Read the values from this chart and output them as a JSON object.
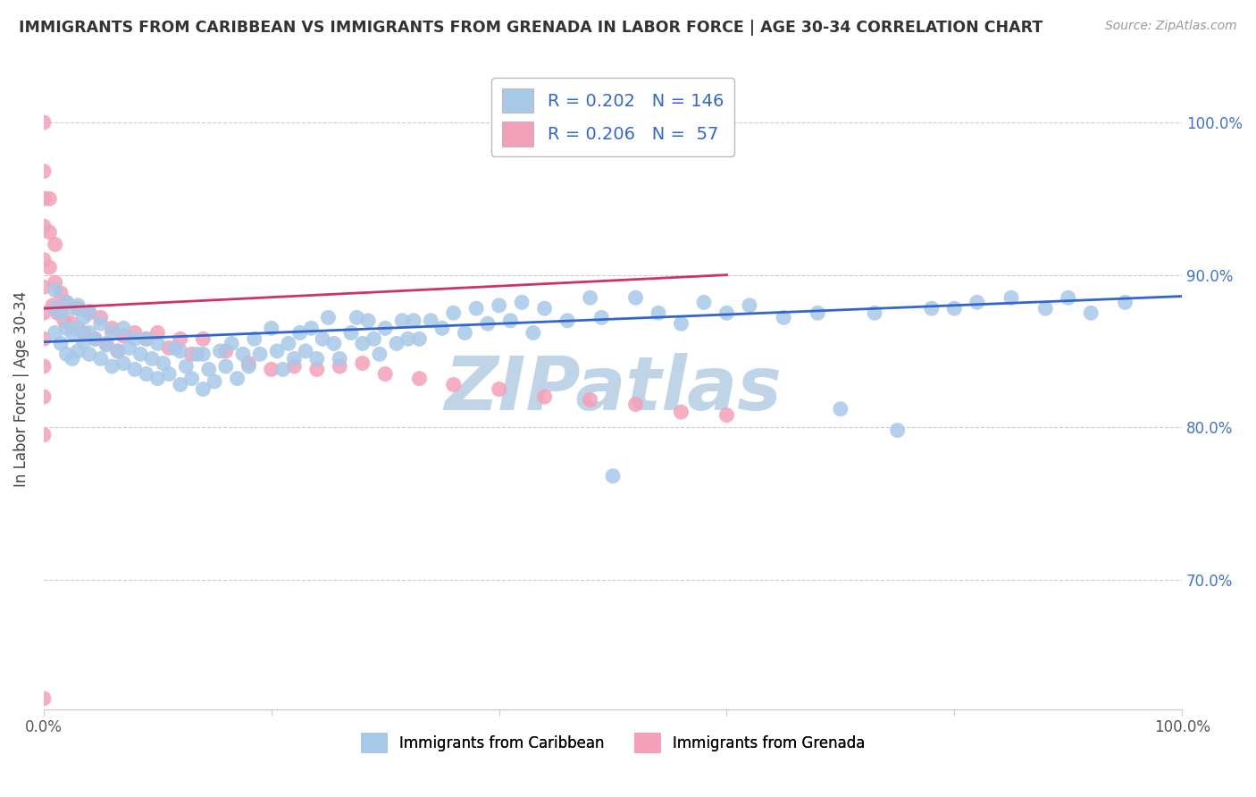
{
  "title": "IMMIGRANTS FROM CARIBBEAN VS IMMIGRANTS FROM GRENADA IN LABOR FORCE | AGE 30-34 CORRELATION CHART",
  "source": "Source: ZipAtlas.com",
  "ylabel": "In Labor Force | Age 30-34",
  "legend_labels": [
    "Immigrants from Caribbean",
    "Immigrants from Grenada"
  ],
  "blue_R": 0.202,
  "blue_N": 146,
  "pink_R": 0.206,
  "pink_N": 57,
  "blue_color": "#a8c8e8",
  "pink_color": "#f4a0b8",
  "blue_line_color": "#3366cc",
  "pink_line_color": "#cc3366",
  "watermark": "ZIPatlas",
  "watermark_color": "#c0d4e8",
  "xlim": [
    0.0,
    1.0
  ],
  "ylim": [
    0.615,
    1.035
  ],
  "yticks": [
    0.7,
    0.8,
    0.9,
    1.0
  ],
  "ytick_labels": [
    "70.0%",
    "80.0%",
    "90.0%",
    "100.0%"
  ],
  "blue_x": [
    0.01,
    0.01,
    0.01,
    0.015,
    0.015,
    0.02,
    0.02,
    0.02,
    0.025,
    0.025,
    0.025,
    0.03,
    0.03,
    0.03,
    0.035,
    0.035,
    0.04,
    0.04,
    0.04,
    0.045,
    0.05,
    0.05,
    0.055,
    0.06,
    0.06,
    0.065,
    0.07,
    0.07,
    0.075,
    0.08,
    0.08,
    0.085,
    0.09,
    0.09,
    0.095,
    0.1,
    0.1,
    0.105,
    0.11,
    0.115,
    0.12,
    0.12,
    0.125,
    0.13,
    0.135,
    0.14,
    0.14,
    0.145,
    0.15,
    0.155,
    0.16,
    0.165,
    0.17,
    0.175,
    0.18,
    0.185,
    0.19,
    0.2,
    0.205,
    0.21,
    0.215,
    0.22,
    0.225,
    0.23,
    0.235,
    0.24,
    0.245,
    0.25,
    0.255,
    0.26,
    0.27,
    0.275,
    0.28,
    0.285,
    0.29,
    0.295,
    0.3,
    0.31,
    0.315,
    0.32,
    0.325,
    0.33,
    0.34,
    0.35,
    0.36,
    0.37,
    0.38,
    0.39,
    0.4,
    0.41,
    0.42,
    0.43,
    0.44,
    0.46,
    0.48,
    0.49,
    0.5,
    0.52,
    0.54,
    0.56,
    0.58,
    0.6,
    0.62,
    0.65,
    0.68,
    0.7,
    0.73,
    0.75,
    0.78,
    0.8,
    0.82,
    0.85,
    0.88,
    0.9,
    0.92,
    0.95
  ],
  "blue_y": [
    0.862,
    0.878,
    0.89,
    0.855,
    0.875,
    0.848,
    0.865,
    0.882,
    0.845,
    0.862,
    0.878,
    0.85,
    0.865,
    0.88,
    0.856,
    0.872,
    0.848,
    0.862,
    0.876,
    0.858,
    0.845,
    0.868,
    0.854,
    0.84,
    0.862,
    0.85,
    0.842,
    0.865,
    0.852,
    0.838,
    0.858,
    0.848,
    0.835,
    0.858,
    0.845,
    0.832,
    0.855,
    0.842,
    0.835,
    0.852,
    0.828,
    0.85,
    0.84,
    0.832,
    0.848,
    0.825,
    0.848,
    0.838,
    0.83,
    0.85,
    0.84,
    0.855,
    0.832,
    0.848,
    0.84,
    0.858,
    0.848,
    0.865,
    0.85,
    0.838,
    0.855,
    0.845,
    0.862,
    0.85,
    0.865,
    0.845,
    0.858,
    0.872,
    0.855,
    0.845,
    0.862,
    0.872,
    0.855,
    0.87,
    0.858,
    0.848,
    0.865,
    0.855,
    0.87,
    0.858,
    0.87,
    0.858,
    0.87,
    0.865,
    0.875,
    0.862,
    0.878,
    0.868,
    0.88,
    0.87,
    0.882,
    0.862,
    0.878,
    0.87,
    0.885,
    0.872,
    0.768,
    0.885,
    0.875,
    0.868,
    0.882,
    0.875,
    0.88,
    0.872,
    0.875,
    0.812,
    0.875,
    0.798,
    0.878,
    0.878,
    0.882,
    0.885,
    0.878,
    0.885,
    0.875,
    0.882
  ],
  "pink_x": [
    0.0,
    0.0,
    0.0,
    0.0,
    0.0,
    0.0,
    0.0,
    0.0,
    0.0,
    0.0,
    0.0,
    0.0,
    0.005,
    0.005,
    0.005,
    0.008,
    0.01,
    0.01,
    0.012,
    0.015,
    0.018,
    0.02,
    0.025,
    0.03,
    0.035,
    0.04,
    0.045,
    0.05,
    0.055,
    0.06,
    0.065,
    0.07,
    0.08,
    0.09,
    0.1,
    0.11,
    0.12,
    0.13,
    0.14,
    0.16,
    0.18,
    0.2,
    0.22,
    0.24,
    0.26,
    0.28,
    0.3,
    0.33,
    0.36,
    0.4,
    0.44,
    0.48,
    0.52,
    0.56,
    0.6
  ],
  "pink_y": [
    1.0,
    0.968,
    0.95,
    0.932,
    0.91,
    0.892,
    0.875,
    0.858,
    0.84,
    0.82,
    0.795,
    0.622,
    0.95,
    0.928,
    0.905,
    0.88,
    0.92,
    0.895,
    0.875,
    0.888,
    0.87,
    0.882,
    0.868,
    0.878,
    0.862,
    0.875,
    0.858,
    0.872,
    0.855,
    0.865,
    0.85,
    0.86,
    0.862,
    0.858,
    0.862,
    0.852,
    0.858,
    0.848,
    0.858,
    0.85,
    0.842,
    0.838,
    0.84,
    0.838,
    0.84,
    0.842,
    0.835,
    0.832,
    0.828,
    0.825,
    0.82,
    0.818,
    0.815,
    0.81,
    0.808
  ],
  "blue_trend_x": [
    0.0,
    1.0
  ],
  "blue_trend_y": [
    0.856,
    0.886
  ],
  "pink_trend_x": [
    0.0,
    0.6
  ],
  "pink_trend_y": [
    0.878,
    0.9
  ]
}
